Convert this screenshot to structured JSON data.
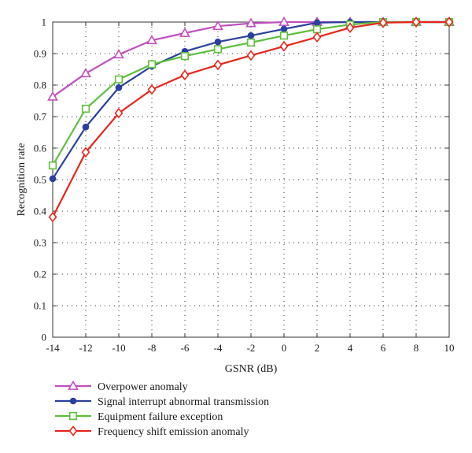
{
  "chart_data": {
    "type": "line",
    "xlabel": "GSNR (dB)",
    "ylabel": "Recognition rate",
    "xlim": [
      -14,
      10
    ],
    "ylim": [
      0,
      1
    ],
    "x_ticks": [
      "-14",
      "-12",
      "-10",
      "-8",
      "-6",
      "-4",
      "-2",
      "0",
      "2",
      "4",
      "6",
      "8",
      "10"
    ],
    "y_ticks": [
      "0",
      "0.1",
      "0.2",
      "0.3",
      "0.4",
      "0.5",
      "0.6",
      "0.7",
      "0.8",
      "0.9",
      "1"
    ],
    "grid": true,
    "legend_position": "bottom",
    "x": [
      -14,
      -12,
      -10,
      -8,
      -6,
      -4,
      -2,
      0,
      2,
      4,
      6,
      8,
      10
    ],
    "series": [
      {
        "name": "Overpower anomaly",
        "color": "#c04fc0",
        "marker": "triangle",
        "values": [
          0.763,
          0.837,
          0.897,
          0.942,
          0.965,
          0.987,
          0.996,
          1.0,
          1.0,
          1.0,
          1.0,
          1.0,
          1.0
        ]
      },
      {
        "name": "Signal interrupt abnormal transmission",
        "color": "#2b3f9e",
        "marker": "dot",
        "values": [
          0.503,
          0.667,
          0.792,
          0.86,
          0.907,
          0.937,
          0.957,
          0.978,
          0.998,
          1.0,
          1.0,
          1.0,
          1.0
        ]
      },
      {
        "name": "Equipment failure exception",
        "color": "#5cbf3a",
        "marker": "square",
        "values": [
          0.545,
          0.725,
          0.818,
          0.866,
          0.892,
          0.914,
          0.935,
          0.957,
          0.977,
          0.992,
          1.0,
          1.0,
          1.0
        ]
      },
      {
        "name": "Frequency shift emission anomaly",
        "color": "#e8251c",
        "marker": "diamond",
        "values": [
          0.381,
          0.587,
          0.711,
          0.786,
          0.832,
          0.864,
          0.894,
          0.923,
          0.952,
          0.982,
          0.998,
          1.0,
          1.0
        ]
      }
    ]
  }
}
